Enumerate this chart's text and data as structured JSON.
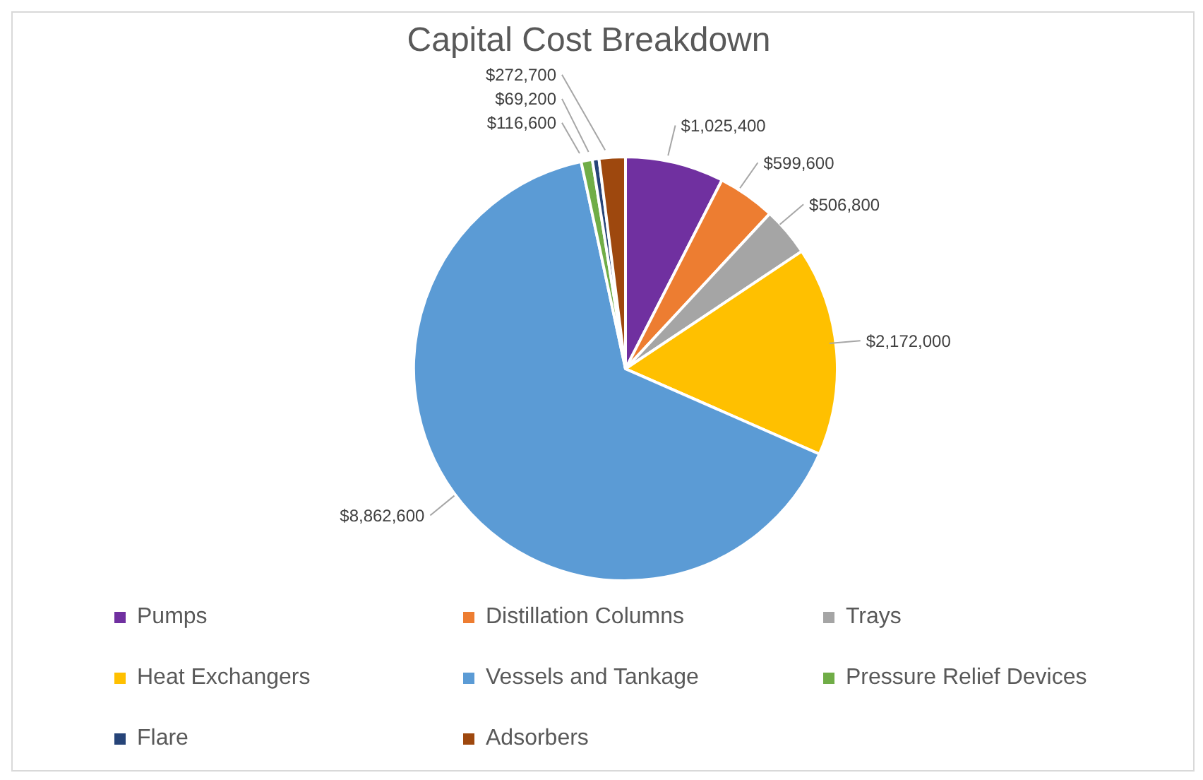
{
  "chart_data": {
    "type": "pie",
    "title": "Capital Cost Breakdown",
    "categories": [
      "Pumps",
      "Distillation Columns",
      "Trays",
      "Heat Exchangers",
      "Vessels and Tankage",
      "Pressure Relief Devices",
      "Flare",
      "Adsorbers"
    ],
    "values": [
      1025400,
      599600,
      506800,
      2172000,
      8862600,
      116600,
      69200,
      272700
    ],
    "value_labels": [
      "$1,025,400",
      "$599,600",
      "$506,800",
      "$2,172,000",
      "$8,862,600",
      "$116,600",
      "$69,200",
      "$272,700"
    ],
    "colors": [
      "#7030a0",
      "#ed7d31",
      "#a5a5a5",
      "#ffc000",
      "#5b9bd5",
      "#70ad47",
      "#264478",
      "#9e480e"
    ],
    "legend": "bottom"
  }
}
